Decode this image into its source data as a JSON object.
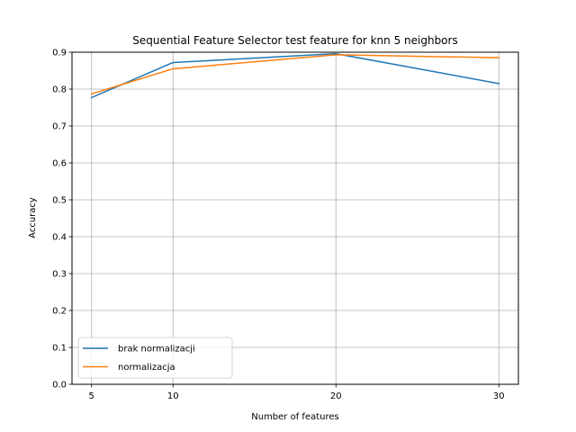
{
  "chart_data": {
    "type": "line",
    "title": "Sequential Feature Selector test feature for knn 5 neighbors",
    "xlabel": "Number of features",
    "ylabel": "Accuracy",
    "x": [
      5,
      10,
      20,
      30
    ],
    "xlim": [
      3.8,
      31.2
    ],
    "ylim": [
      0.0,
      0.9
    ],
    "xticks": [
      5,
      10,
      20,
      30
    ],
    "yticks": [
      0.0,
      0.1,
      0.2,
      0.3,
      0.4,
      0.5,
      0.6,
      0.7,
      0.8,
      0.9
    ],
    "grid": true,
    "legend_position": "lower-left",
    "series": [
      {
        "name": "brak normalizacji",
        "color": "#1f77b4",
        "values": [
          0.777,
          0.872,
          0.896,
          0.815
        ]
      },
      {
        "name": "normalizacja",
        "color": "#ff7f0e",
        "values": [
          0.787,
          0.855,
          0.893,
          0.885
        ]
      }
    ]
  }
}
